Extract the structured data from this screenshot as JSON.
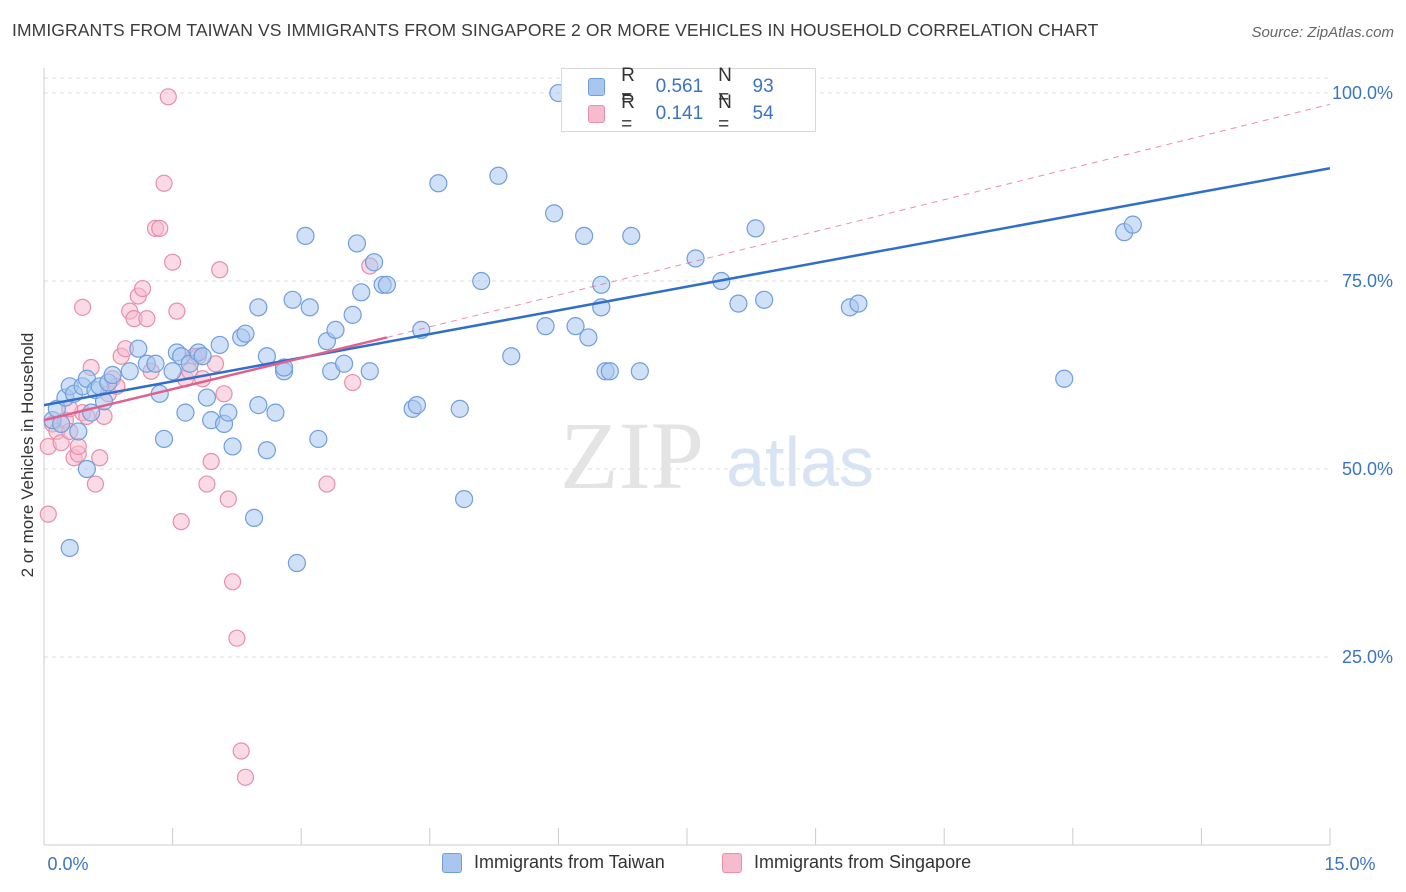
{
  "title": "IMMIGRANTS FROM TAIWAN VS IMMIGRANTS FROM SINGAPORE 2 OR MORE VEHICLES IN HOUSEHOLD CORRELATION CHART",
  "source": "Source: ZipAtlas.com",
  "watermark": {
    "zip": "ZIP",
    "atlas": "atlas"
  },
  "legend": {
    "taiwan": {
      "r_label": "R =",
      "r_value": "0.561",
      "n_label": "N =",
      "n_value": "93"
    },
    "singapore": {
      "r_label": "R =",
      "r_value": "0.141",
      "n_label": "N =",
      "n_value": "54"
    }
  },
  "colors": {
    "taiwan_fill": "#a9c6ef",
    "taiwan_stroke": "#6f9fdd",
    "taiwan_line": "#2f6fcb",
    "singapore_fill": "#f6bccd",
    "singapore_stroke": "#e78fab",
    "singapore_line": "#e0608c",
    "axis_text": "#3a75c4",
    "grid": "#dddddd"
  },
  "chart_data": {
    "type": "scatter",
    "title": "IMMIGRANTS FROM TAIWAN VS IMMIGRANTS FROM SINGAPORE 2 OR MORE VEHICLES IN HOUSEHOLD CORRELATION CHART",
    "xlabel": "",
    "ylabel": "2 or more Vehicles in Household",
    "xlim": [
      0,
      15
    ],
    "ylim": [
      0,
      102
    ],
    "x_tick_labels": [
      {
        "value": 0,
        "label": "0.0%"
      },
      {
        "value": 15,
        "label": "15.0%"
      }
    ],
    "y_ticks": [
      {
        "value": 25,
        "label": "25.0%"
      },
      {
        "value": 50,
        "label": "50.0%"
      },
      {
        "value": 75,
        "label": "75.0%"
      },
      {
        "value": 100,
        "label": "100.0%"
      }
    ],
    "x_minor_ticks": [
      1.5,
      3,
      4.5,
      6,
      7.5,
      9,
      10.5,
      12,
      13.5,
      15
    ],
    "series": [
      {
        "name": "Immigrants from Taiwan",
        "r": 0.561,
        "n": 93,
        "points": [
          [
            0.1,
            56.5
          ],
          [
            0.15,
            58
          ],
          [
            0.2,
            56
          ],
          [
            0.25,
            59.5
          ],
          [
            0.3,
            61
          ],
          [
            0.35,
            60
          ],
          [
            0.4,
            55
          ],
          [
            0.45,
            61
          ],
          [
            0.5,
            62
          ],
          [
            0.55,
            57.5
          ],
          [
            0.6,
            60.5
          ],
          [
            0.65,
            61
          ],
          [
            0.7,
            59
          ],
          [
            0.75,
            61.5
          ],
          [
            0.8,
            62.5
          ],
          [
            1.0,
            63
          ],
          [
            1.1,
            66
          ],
          [
            1.2,
            64
          ],
          [
            1.3,
            64
          ],
          [
            1.35,
            60
          ],
          [
            1.4,
            54
          ],
          [
            1.5,
            63
          ],
          [
            1.55,
            65.5
          ],
          [
            1.6,
            65
          ],
          [
            1.65,
            57.5
          ],
          [
            1.7,
            64
          ],
          [
            1.8,
            65.5
          ],
          [
            1.85,
            65
          ],
          [
            1.9,
            59.5
          ],
          [
            1.95,
            56.5
          ],
          [
            2.05,
            66.5
          ],
          [
            2.1,
            56
          ],
          [
            2.15,
            57.5
          ],
          [
            2.2,
            53
          ],
          [
            2.3,
            67.5
          ],
          [
            2.35,
            68
          ],
          [
            2.45,
            43.5
          ],
          [
            2.5,
            58.5
          ],
          [
            2.5,
            71.5
          ],
          [
            2.6,
            65
          ],
          [
            2.6,
            52.5
          ],
          [
            2.7,
            57.5
          ],
          [
            2.8,
            63
          ],
          [
            2.8,
            63.5
          ],
          [
            2.9,
            72.5
          ],
          [
            2.95,
            37.5
          ],
          [
            3.05,
            81
          ],
          [
            3.1,
            71.5
          ],
          [
            3.2,
            54
          ],
          [
            3.3,
            67
          ],
          [
            3.35,
            63
          ],
          [
            3.4,
            68.5
          ],
          [
            3.5,
            64
          ],
          [
            3.6,
            70.5
          ],
          [
            3.65,
            80
          ],
          [
            3.7,
            73.5
          ],
          [
            3.8,
            63
          ],
          [
            3.85,
            77.5
          ],
          [
            3.95,
            74.5
          ],
          [
            4.0,
            74.5
          ],
          [
            4.4,
            68.5
          ],
          [
            4.3,
            58
          ],
          [
            4.35,
            58.5
          ],
          [
            4.6,
            88
          ],
          [
            4.85,
            58
          ],
          [
            4.9,
            46
          ],
          [
            5.1,
            75
          ],
          [
            5.3,
            89
          ],
          [
            5.45,
            65
          ],
          [
            5.85,
            69
          ],
          [
            5.95,
            84
          ],
          [
            6.2,
            69
          ],
          [
            6.3,
            81
          ],
          [
            6.35,
            67.5
          ],
          [
            6.5,
            74.5
          ],
          [
            6.5,
            71.5
          ],
          [
            6.55,
            63
          ],
          [
            6.6,
            63
          ],
          [
            6.85,
            81
          ],
          [
            6.95,
            63
          ],
          [
            7.6,
            78
          ],
          [
            7.9,
            75
          ],
          [
            8.1,
            72
          ],
          [
            8.3,
            82
          ],
          [
            8.4,
            72.5
          ],
          [
            9.4,
            71.5
          ],
          [
            9.5,
            72
          ],
          [
            11.9,
            62
          ],
          [
            12.6,
            81.5
          ],
          [
            12.7,
            82.5
          ],
          [
            0.5,
            50
          ],
          [
            0.3,
            39.5
          ],
          [
            6.0,
            100
          ]
        ]
      },
      {
        "name": "Immigrants from Singapore",
        "r": 0.141,
        "n": 54,
        "points": [
          [
            0.05,
            53
          ],
          [
            0.1,
            56
          ],
          [
            0.15,
            55
          ],
          [
            0.2,
            53.5
          ],
          [
            0.25,
            56.5
          ],
          [
            0.3,
            55
          ],
          [
            0.35,
            51.5
          ],
          [
            0.4,
            52
          ],
          [
            0.45,
            57.5
          ],
          [
            0.5,
            57
          ],
          [
            0.55,
            63.5
          ],
          [
            0.6,
            48
          ],
          [
            0.65,
            51.5
          ],
          [
            0.7,
            57
          ],
          [
            0.75,
            60
          ],
          [
            0.8,
            62
          ],
          [
            0.85,
            61
          ],
          [
            0.9,
            65
          ],
          [
            0.95,
            66
          ],
          [
            1.0,
            71
          ],
          [
            1.05,
            70
          ],
          [
            1.1,
            73
          ],
          [
            1.15,
            74
          ],
          [
            1.2,
            70
          ],
          [
            1.25,
            63
          ],
          [
            1.3,
            82
          ],
          [
            1.35,
            82
          ],
          [
            1.4,
            88
          ],
          [
            1.45,
            99.5
          ],
          [
            1.5,
            77.5
          ],
          [
            1.55,
            71
          ],
          [
            1.6,
            43
          ],
          [
            1.65,
            62
          ],
          [
            1.7,
            63
          ],
          [
            1.75,
            65
          ],
          [
            1.8,
            65
          ],
          [
            1.85,
            62
          ],
          [
            1.9,
            48
          ],
          [
            1.95,
            51
          ],
          [
            2.0,
            64
          ],
          [
            2.05,
            76.5
          ],
          [
            2.1,
            60
          ],
          [
            2.15,
            46
          ],
          [
            2.2,
            35
          ],
          [
            2.25,
            27.5
          ],
          [
            2.3,
            12.5
          ],
          [
            2.35,
            9
          ],
          [
            3.3,
            48
          ],
          [
            3.6,
            61.5
          ],
          [
            3.8,
            77
          ],
          [
            0.05,
            44
          ],
          [
            0.4,
            53
          ],
          [
            0.45,
            71.5
          ],
          [
            0.3,
            58
          ]
        ]
      }
    ],
    "trend_lines": [
      {
        "series": "Immigrants from Taiwan",
        "x": [
          0,
          15
        ],
        "y": [
          58.5,
          90
        ]
      },
      {
        "series": "Immigrants from Singapore",
        "x": [
          0,
          4
        ],
        "y": [
          56.5,
          67.5
        ],
        "dashed_extension": {
          "x": [
            4,
            15
          ],
          "y": [
            67.5,
            98.5
          ]
        }
      }
    ]
  },
  "bottom_legend": [
    "Immigrants from Taiwan",
    "Immigrants from Singapore"
  ]
}
